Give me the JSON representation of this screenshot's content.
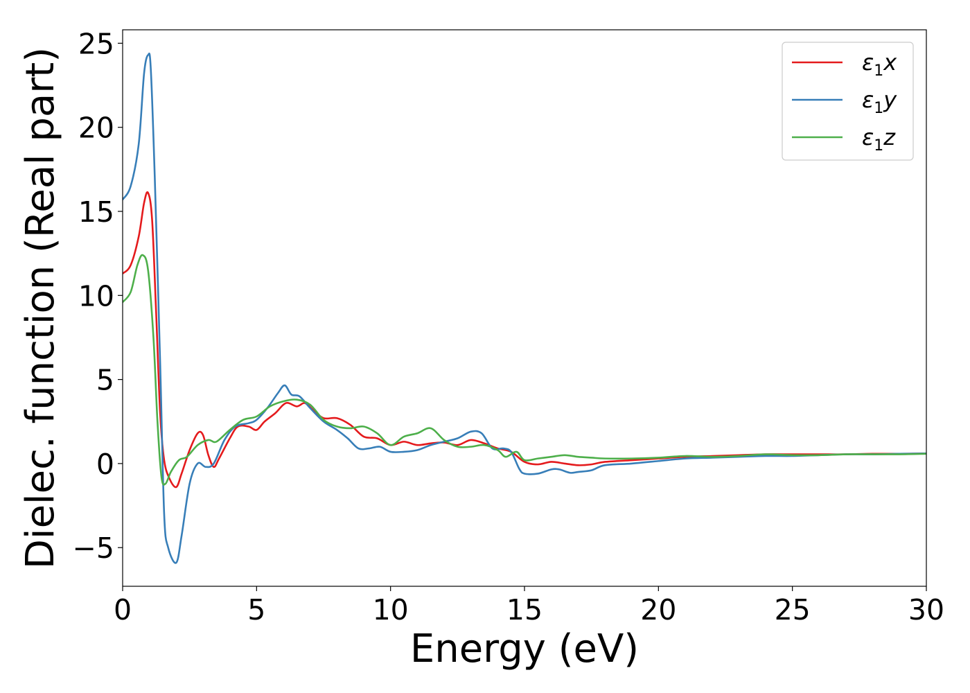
{
  "chart_data": {
    "type": "line",
    "xlabel": "Energy (eV)",
    "ylabel": "Dielec. function (Real part)",
    "xlim": [
      0,
      30
    ],
    "ylim": [
      -7.3,
      25.8
    ],
    "xticks": [
      0,
      5,
      10,
      15,
      20,
      25,
      30
    ],
    "xtick_labels": [
      "0",
      "5",
      "10",
      "15",
      "20",
      "25",
      "30"
    ],
    "yticks": [
      -5,
      0,
      5,
      10,
      15,
      20,
      25
    ],
    "ytick_labels": [
      "−5",
      "0",
      "5",
      "10",
      "15",
      "20",
      "25"
    ],
    "grid": false,
    "legend_position": "top-right",
    "series": [
      {
        "name": "ε₁x",
        "legend": {
          "symbol": "ε",
          "sub": "1",
          "axis": "x"
        },
        "color": "#e41a1c",
        "points": [
          [
            0,
            11.3
          ],
          [
            0.3,
            11.8
          ],
          [
            0.6,
            13.5
          ],
          [
            0.8,
            15.5
          ],
          [
            0.95,
            16.1
          ],
          [
            1.1,
            14.5
          ],
          [
            1.25,
            9
          ],
          [
            1.4,
            3
          ],
          [
            1.55,
            0.2
          ],
          [
            1.75,
            -0.9
          ],
          [
            2.0,
            -1.4
          ],
          [
            2.2,
            -0.6
          ],
          [
            2.5,
            0.8
          ],
          [
            2.8,
            1.8
          ],
          [
            3.0,
            1.7
          ],
          [
            3.2,
            0.5
          ],
          [
            3.4,
            -0.2
          ],
          [
            3.6,
            0.3
          ],
          [
            4.0,
            1.5
          ],
          [
            4.3,
            2.2
          ],
          [
            4.7,
            2.2
          ],
          [
            5.0,
            2.0
          ],
          [
            5.3,
            2.5
          ],
          [
            5.7,
            3.0
          ],
          [
            6.1,
            3.6
          ],
          [
            6.5,
            3.4
          ],
          [
            6.8,
            3.6
          ],
          [
            7.1,
            3.2
          ],
          [
            7.5,
            2.7
          ],
          [
            8.0,
            2.7
          ],
          [
            8.5,
            2.3
          ],
          [
            9.0,
            1.6
          ],
          [
            9.5,
            1.5
          ],
          [
            10.0,
            1.1
          ],
          [
            10.5,
            1.3
          ],
          [
            11.0,
            1.1
          ],
          [
            11.5,
            1.2
          ],
          [
            12.0,
            1.25
          ],
          [
            12.5,
            1.1
          ],
          [
            13.0,
            1.4
          ],
          [
            13.5,
            1.2
          ],
          [
            14.0,
            0.9
          ],
          [
            14.5,
            0.7
          ],
          [
            15.0,
            0.1
          ],
          [
            15.5,
            -0.05
          ],
          [
            16.0,
            0.1
          ],
          [
            16.5,
            0.0
          ],
          [
            17.0,
            -0.1
          ],
          [
            17.5,
            -0.05
          ],
          [
            18.0,
            0.1
          ],
          [
            19.0,
            0.2
          ],
          [
            20.0,
            0.3
          ],
          [
            21.0,
            0.4
          ],
          [
            22.0,
            0.45
          ],
          [
            23.0,
            0.5
          ],
          [
            24.0,
            0.55
          ],
          [
            25.0,
            0.55
          ],
          [
            26.0,
            0.55
          ],
          [
            27.0,
            0.55
          ],
          [
            28.0,
            0.58
          ],
          [
            29.0,
            0.58
          ],
          [
            30.0,
            0.6
          ]
        ]
      },
      {
        "name": "ε₁y",
        "legend": {
          "symbol": "ε",
          "sub": "1",
          "axis": "y"
        },
        "color": "#377eb8",
        "points": [
          [
            0,
            15.7
          ],
          [
            0.3,
            16.5
          ],
          [
            0.6,
            19.0
          ],
          [
            0.8,
            23.2
          ],
          [
            0.95,
            24.3
          ],
          [
            1.05,
            23.5
          ],
          [
            1.2,
            17
          ],
          [
            1.4,
            6
          ],
          [
            1.55,
            -3
          ],
          [
            1.7,
            -5.0
          ],
          [
            2.0,
            -5.9
          ],
          [
            2.2,
            -4.3
          ],
          [
            2.5,
            -1.2
          ],
          [
            2.8,
            0.0
          ],
          [
            3.1,
            -0.2
          ],
          [
            3.4,
            0.0
          ],
          [
            3.8,
            1.4
          ],
          [
            4.2,
            2.2
          ],
          [
            4.7,
            2.4
          ],
          [
            5.0,
            2.6
          ],
          [
            5.4,
            3.3
          ],
          [
            5.8,
            4.2
          ],
          [
            6.05,
            4.65
          ],
          [
            6.3,
            4.1
          ],
          [
            6.6,
            4.0
          ],
          [
            7.0,
            3.3
          ],
          [
            7.5,
            2.5
          ],
          [
            8.0,
            2.0
          ],
          [
            8.4,
            1.5
          ],
          [
            8.8,
            0.9
          ],
          [
            9.2,
            0.9
          ],
          [
            9.6,
            1.0
          ],
          [
            10.0,
            0.7
          ],
          [
            10.5,
            0.7
          ],
          [
            11.0,
            0.8
          ],
          [
            11.5,
            1.1
          ],
          [
            12.0,
            1.3
          ],
          [
            12.5,
            1.5
          ],
          [
            13.0,
            1.9
          ],
          [
            13.4,
            1.8
          ],
          [
            13.8,
            0.9
          ],
          [
            14.2,
            0.9
          ],
          [
            14.5,
            0.7
          ],
          [
            14.8,
            -0.3
          ],
          [
            15.0,
            -0.6
          ],
          [
            15.5,
            -0.6
          ],
          [
            16.0,
            -0.35
          ],
          [
            16.3,
            -0.35
          ],
          [
            16.7,
            -0.55
          ],
          [
            17.0,
            -0.5
          ],
          [
            17.5,
            -0.4
          ],
          [
            18.0,
            -0.1
          ],
          [
            19.0,
            0.0
          ],
          [
            20.0,
            0.15
          ],
          [
            21.0,
            0.3
          ],
          [
            22.0,
            0.35
          ],
          [
            23.0,
            0.4
          ],
          [
            24.0,
            0.45
          ],
          [
            25.0,
            0.45
          ],
          [
            26.0,
            0.5
          ],
          [
            27.0,
            0.55
          ],
          [
            28.0,
            0.55
          ],
          [
            29.0,
            0.58
          ],
          [
            30.0,
            0.6
          ]
        ]
      },
      {
        "name": "ε₁z",
        "legend": {
          "symbol": "ε",
          "sub": "1",
          "axis": "z"
        },
        "color": "#4daf4a",
        "points": [
          [
            0,
            9.6
          ],
          [
            0.3,
            10.2
          ],
          [
            0.55,
            11.8
          ],
          [
            0.75,
            12.4
          ],
          [
            0.95,
            11.5
          ],
          [
            1.15,
            7.5
          ],
          [
            1.3,
            2.5
          ],
          [
            1.45,
            -0.8
          ],
          [
            1.6,
            -1.2
          ],
          [
            1.8,
            -0.5
          ],
          [
            2.1,
            0.2
          ],
          [
            2.4,
            0.4
          ],
          [
            2.8,
            1.1
          ],
          [
            3.2,
            1.4
          ],
          [
            3.5,
            1.3
          ],
          [
            4.0,
            2.0
          ],
          [
            4.5,
            2.6
          ],
          [
            5.0,
            2.8
          ],
          [
            5.5,
            3.4
          ],
          [
            6.0,
            3.7
          ],
          [
            6.5,
            3.8
          ],
          [
            7.0,
            3.5
          ],
          [
            7.5,
            2.6
          ],
          [
            8.0,
            2.2
          ],
          [
            8.5,
            2.1
          ],
          [
            9.0,
            2.2
          ],
          [
            9.5,
            1.8
          ],
          [
            10.0,
            1.1
          ],
          [
            10.5,
            1.6
          ],
          [
            11.0,
            1.8
          ],
          [
            11.5,
            2.1
          ],
          [
            12.0,
            1.4
          ],
          [
            12.5,
            1.0
          ],
          [
            13.0,
            1.0
          ],
          [
            13.5,
            1.1
          ],
          [
            14.0,
            0.8
          ],
          [
            14.3,
            0.4
          ],
          [
            14.7,
            0.7
          ],
          [
            15.0,
            0.2
          ],
          [
            15.5,
            0.3
          ],
          [
            16.0,
            0.4
          ],
          [
            16.5,
            0.5
          ],
          [
            17.0,
            0.4
          ],
          [
            17.5,
            0.35
          ],
          [
            18.0,
            0.3
          ],
          [
            19.0,
            0.3
          ],
          [
            20.0,
            0.35
          ],
          [
            21.0,
            0.45
          ],
          [
            22.0,
            0.4
          ],
          [
            23.0,
            0.45
          ],
          [
            24.0,
            0.55
          ],
          [
            25.0,
            0.5
          ],
          [
            26.0,
            0.5
          ],
          [
            27.0,
            0.55
          ],
          [
            28.0,
            0.55
          ],
          [
            29.0,
            0.55
          ],
          [
            30.0,
            0.58
          ]
        ]
      }
    ]
  }
}
